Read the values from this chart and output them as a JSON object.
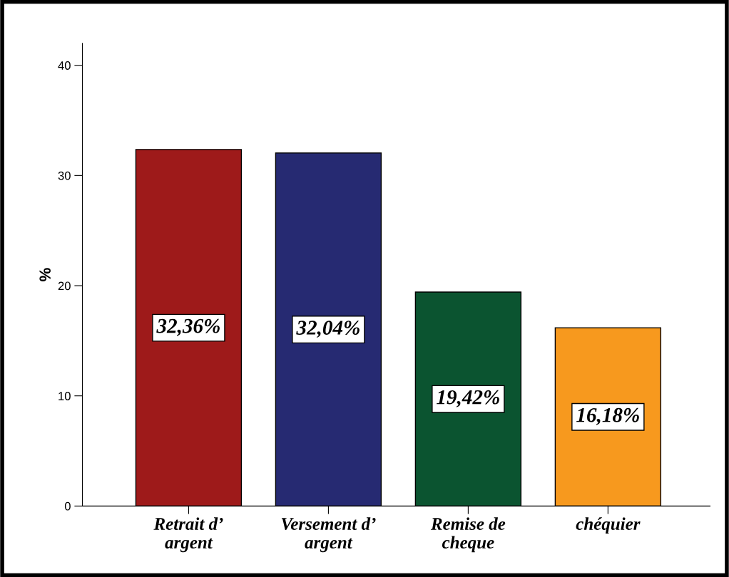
{
  "chart_data": {
    "type": "bar",
    "ylabel": "%",
    "categories": [
      "Retrait d’\nargent",
      "Versement d’\nargent",
      "Remise de\ncheque",
      "chéquier"
    ],
    "values": [
      32.36,
      32.04,
      19.42,
      16.18
    ],
    "colors": [
      "#9e1a1a",
      "#262a72",
      "#0b5430",
      "#f7991e"
    ],
    "value_labels": [
      "32,36%",
      "32,04%",
      "19,42%",
      "16,18%"
    ],
    "ylim": [
      0,
      42
    ],
    "yticks": [
      0,
      10,
      20,
      30,
      40
    ],
    "grid": false,
    "legend": false
  }
}
